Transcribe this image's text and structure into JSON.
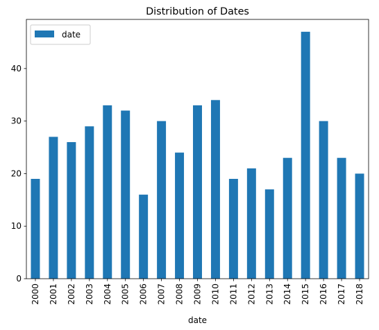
{
  "chart_data": {
    "type": "bar",
    "title": "Distribution of Dates",
    "xlabel": "date",
    "ylabel": "",
    "categories": [
      "2000",
      "2001",
      "2002",
      "2003",
      "2004",
      "2005",
      "2006",
      "2007",
      "2008",
      "2009",
      "2010",
      "2011",
      "2012",
      "2013",
      "2014",
      "2015",
      "2016",
      "2017",
      "2018"
    ],
    "series": [
      {
        "name": "date",
        "color": "#1f77b4",
        "values": [
          19,
          27,
          26,
          29,
          33,
          32,
          16,
          30,
          24,
          33,
          34,
          19,
          21,
          17,
          23,
          47,
          30,
          23,
          20
        ]
      }
    ],
    "ylim": [
      0,
      49.35
    ],
    "yticks": [
      0,
      10,
      20,
      30,
      40
    ],
    "grid": false,
    "legend_position": "top-left",
    "x_tick_rotation": 90
  }
}
